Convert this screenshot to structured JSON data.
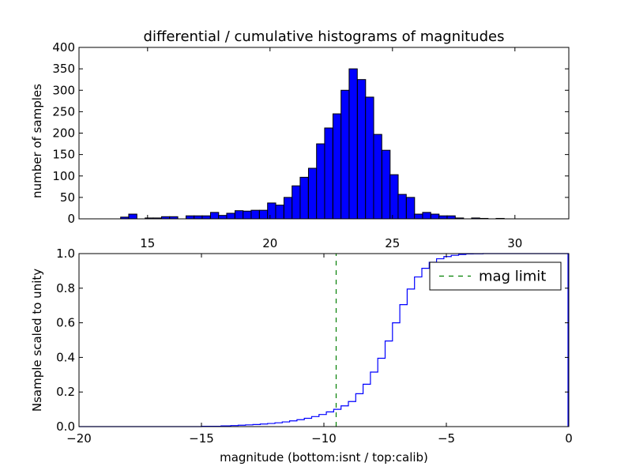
{
  "chart_data": [
    {
      "type": "bar",
      "title": "differential / cumulative histograms of magnitudes",
      "xlabel": "",
      "ylabel": "number of samples",
      "xlim": [
        12.2,
        32.2
      ],
      "ylim": [
        0,
        400
      ],
      "xticks": [
        15,
        20,
        25,
        30
      ],
      "yticks": [
        0,
        50,
        100,
        150,
        200,
        250,
        300,
        350,
        400
      ],
      "bin_width": 0.3333,
      "colors": {
        "bar": "#0000ff",
        "edge": "#000000"
      },
      "bins": [
        {
          "x": 13.9,
          "value": 4
        },
        {
          "x": 14.23,
          "value": 11
        },
        {
          "x": 14.9,
          "value": 2
        },
        {
          "x": 15.23,
          "value": 2
        },
        {
          "x": 15.57,
          "value": 5
        },
        {
          "x": 15.9,
          "value": 5
        },
        {
          "x": 16.57,
          "value": 7
        },
        {
          "x": 16.9,
          "value": 7
        },
        {
          "x": 17.23,
          "value": 7
        },
        {
          "x": 17.57,
          "value": 15
        },
        {
          "x": 17.9,
          "value": 8
        },
        {
          "x": 18.23,
          "value": 13
        },
        {
          "x": 18.57,
          "value": 19
        },
        {
          "x": 18.9,
          "value": 18
        },
        {
          "x": 19.23,
          "value": 20
        },
        {
          "x": 19.57,
          "value": 20
        },
        {
          "x": 19.9,
          "value": 37
        },
        {
          "x": 20.23,
          "value": 32
        },
        {
          "x": 20.57,
          "value": 50
        },
        {
          "x": 20.9,
          "value": 77
        },
        {
          "x": 21.23,
          "value": 97
        },
        {
          "x": 21.57,
          "value": 118
        },
        {
          "x": 21.9,
          "value": 175
        },
        {
          "x": 22.23,
          "value": 212
        },
        {
          "x": 22.57,
          "value": 245
        },
        {
          "x": 22.9,
          "value": 300
        },
        {
          "x": 23.23,
          "value": 350
        },
        {
          "x": 23.57,
          "value": 325
        },
        {
          "x": 23.9,
          "value": 284
        },
        {
          "x": 24.23,
          "value": 197
        },
        {
          "x": 24.57,
          "value": 160
        },
        {
          "x": 24.9,
          "value": 103
        },
        {
          "x": 25.23,
          "value": 57
        },
        {
          "x": 25.57,
          "value": 50
        },
        {
          "x": 25.9,
          "value": 11
        },
        {
          "x": 26.23,
          "value": 15
        },
        {
          "x": 26.57,
          "value": 11
        },
        {
          "x": 26.9,
          "value": 7
        },
        {
          "x": 27.23,
          "value": 7
        },
        {
          "x": 27.57,
          "value": 2
        },
        {
          "x": 28.23,
          "value": 2
        },
        {
          "x": 28.57,
          "value": 1
        },
        {
          "x": 29.23,
          "value": 1
        }
      ]
    },
    {
      "type": "line",
      "title": "",
      "xlabel": "magnitude (bottom:isnt / top:calib)",
      "ylabel": "Nsample scaled to unity",
      "xlim": [
        -20,
        0
      ],
      "ylim": [
        0,
        1.0
      ],
      "xticks": [
        -20,
        -15,
        -10,
        -5,
        0
      ],
      "xtick_labels": [
        "−20",
        "−15",
        "−10",
        "−5",
        "0"
      ],
      "yticks": [
        0,
        0.2,
        0.4,
        0.6,
        0.8,
        1.0
      ],
      "ytick_labels": [
        "0.0",
        "0.2",
        "0.4",
        "0.6",
        "0.8",
        "1.0"
      ],
      "series": [
        {
          "style": "step",
          "color": "#0000ff",
          "x": [
            -20.0,
            -16.0,
            -15.0,
            -14.2,
            -13.8,
            -13.5,
            -13.2,
            -12.9,
            -12.6,
            -12.3,
            -12.0,
            -11.7,
            -11.4,
            -11.1,
            -10.8,
            -10.5,
            -10.2,
            -9.9,
            -9.6,
            -9.3,
            -9.0,
            -8.7,
            -8.4,
            -8.1,
            -7.8,
            -7.5,
            -7.2,
            -6.9,
            -6.6,
            -6.3,
            -6.0,
            -5.7,
            -5.4,
            -5.1,
            -4.8,
            -4.5,
            -4.2,
            -3.9,
            -3.5,
            -3.0,
            -0.05
          ],
          "y": [
            0.0,
            0.0,
            0.002,
            0.004,
            0.006,
            0.008,
            0.01,
            0.012,
            0.015,
            0.018,
            0.022,
            0.027,
            0.033,
            0.04,
            0.048,
            0.058,
            0.07,
            0.085,
            0.1,
            0.12,
            0.145,
            0.19,
            0.245,
            0.315,
            0.395,
            0.495,
            0.6,
            0.705,
            0.795,
            0.865,
            0.915,
            0.95,
            0.97,
            0.983,
            0.99,
            0.995,
            0.998,
            0.999,
            1.0,
            1.0,
            1.0
          ]
        },
        {
          "name": "mag limit",
          "style": "vline-dashed",
          "color": "#008000",
          "x": -9.5
        }
      ],
      "legend": {
        "position": "top-right",
        "entries": [
          "mag limit"
        ]
      }
    }
  ]
}
